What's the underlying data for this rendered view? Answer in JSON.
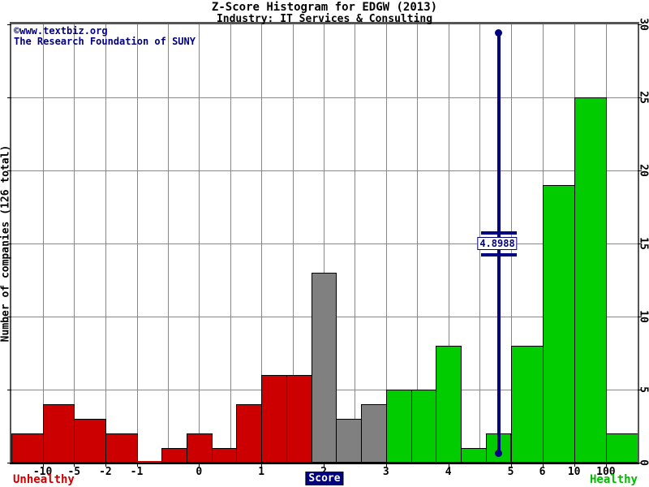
{
  "header": {
    "title": "Z-Score Histogram for EDGW (2013)",
    "subtitle": "Industry: IT Services & Consulting"
  },
  "credits": {
    "line1": "©www.textbiz.org",
    "line2": "The Research Foundation of SUNY"
  },
  "axes": {
    "y_label": "Number of companies (126 total)",
    "y_ticks": [
      "0",
      "5",
      "10",
      "15",
      "20",
      "25",
      "30"
    ],
    "x_label": "Score",
    "x_ticks": [
      "-10",
      "-5",
      "-2",
      "-1",
      "0",
      "1",
      "2",
      "3",
      "4",
      "5",
      "6",
      "10",
      "100"
    ]
  },
  "zones": {
    "unhealthy_label": "Unhealthy",
    "healthy_label": "Healthy"
  },
  "colors": {
    "navy": "#000080",
    "red": "#CC0000",
    "green": "#00CC00",
    "grey_bar": "#808080",
    "grid": "#888888",
    "border": "#555555",
    "axis": "#000000"
  },
  "chart_data": {
    "type": "bar",
    "title": "Z-Score Histogram for EDGW (2013)",
    "subtitle": "Industry: IT Services & Consulting",
    "xlabel": "Score",
    "ylabel": "Number of companies (126 total)",
    "total_companies": 126,
    "ylim": [
      0,
      30
    ],
    "grid": true,
    "y_ticks": [
      0,
      5,
      10,
      15,
      20,
      25,
      30
    ],
    "x_tick_labels": [
      "-10",
      "-5",
      "-2",
      "-1",
      "0",
      "1",
      "2",
      "3",
      "4",
      "5",
      "6",
      "10",
      "100"
    ],
    "bins": [
      {
        "range": "< -10",
        "count": 2,
        "zone": "distress"
      },
      {
        "range": "-10 to -5",
        "count": 4,
        "zone": "distress"
      },
      {
        "range": "-5 to -2",
        "count": 3,
        "zone": "distress"
      },
      {
        "range": "-2 to -1",
        "count": 2,
        "zone": "distress"
      },
      {
        "range": "-1 to -0.6",
        "count": 0,
        "zone": "distress"
      },
      {
        "range": "-0.6 to -0.2",
        "count": 1,
        "zone": "distress"
      },
      {
        "range": "-0.2 to 0.2",
        "count": 2,
        "zone": "distress"
      },
      {
        "range": "0.2 to 0.6",
        "count": 1,
        "zone": "distress"
      },
      {
        "range": "0.6 to 1",
        "count": 4,
        "zone": "distress"
      },
      {
        "range": "1 to 1.4",
        "count": 6,
        "zone": "distress"
      },
      {
        "range": "1.4 to 1.8",
        "count": 6,
        "zone": "distress"
      },
      {
        "range": "1.8 to 2.2",
        "count": 13,
        "zone": "grey"
      },
      {
        "range": "2.2 to 2.6",
        "count": 3,
        "zone": "grey"
      },
      {
        "range": "2.6 to 3",
        "count": 4,
        "zone": "grey"
      },
      {
        "range": "3 to 3.4",
        "count": 5,
        "zone": "safe"
      },
      {
        "range": "3.4 to 3.8",
        "count": 5,
        "zone": "safe"
      },
      {
        "range": "3.8 to 4.2",
        "count": 8,
        "zone": "safe"
      },
      {
        "range": "4.2 to 4.6",
        "count": 1,
        "zone": "safe"
      },
      {
        "range": "4.6 to 5",
        "count": 2,
        "zone": "safe"
      },
      {
        "range": "5 to 6",
        "count": 8,
        "zone": "safe"
      },
      {
        "range": "6 to 10",
        "count": 19,
        "zone": "safe"
      },
      {
        "range": "10 to 100",
        "count": 25,
        "zone": "safe"
      },
      {
        "range": "> 100",
        "count": 2,
        "zone": "safe"
      }
    ],
    "zone_colors": {
      "distress": "#CC0000",
      "grey": "#808080",
      "safe": "#00CC00"
    },
    "zone_labels": {
      "distress": "Unhealthy",
      "safe": "Healthy"
    },
    "marker": {
      "value": 4.8988,
      "label": "4.8988"
    }
  }
}
